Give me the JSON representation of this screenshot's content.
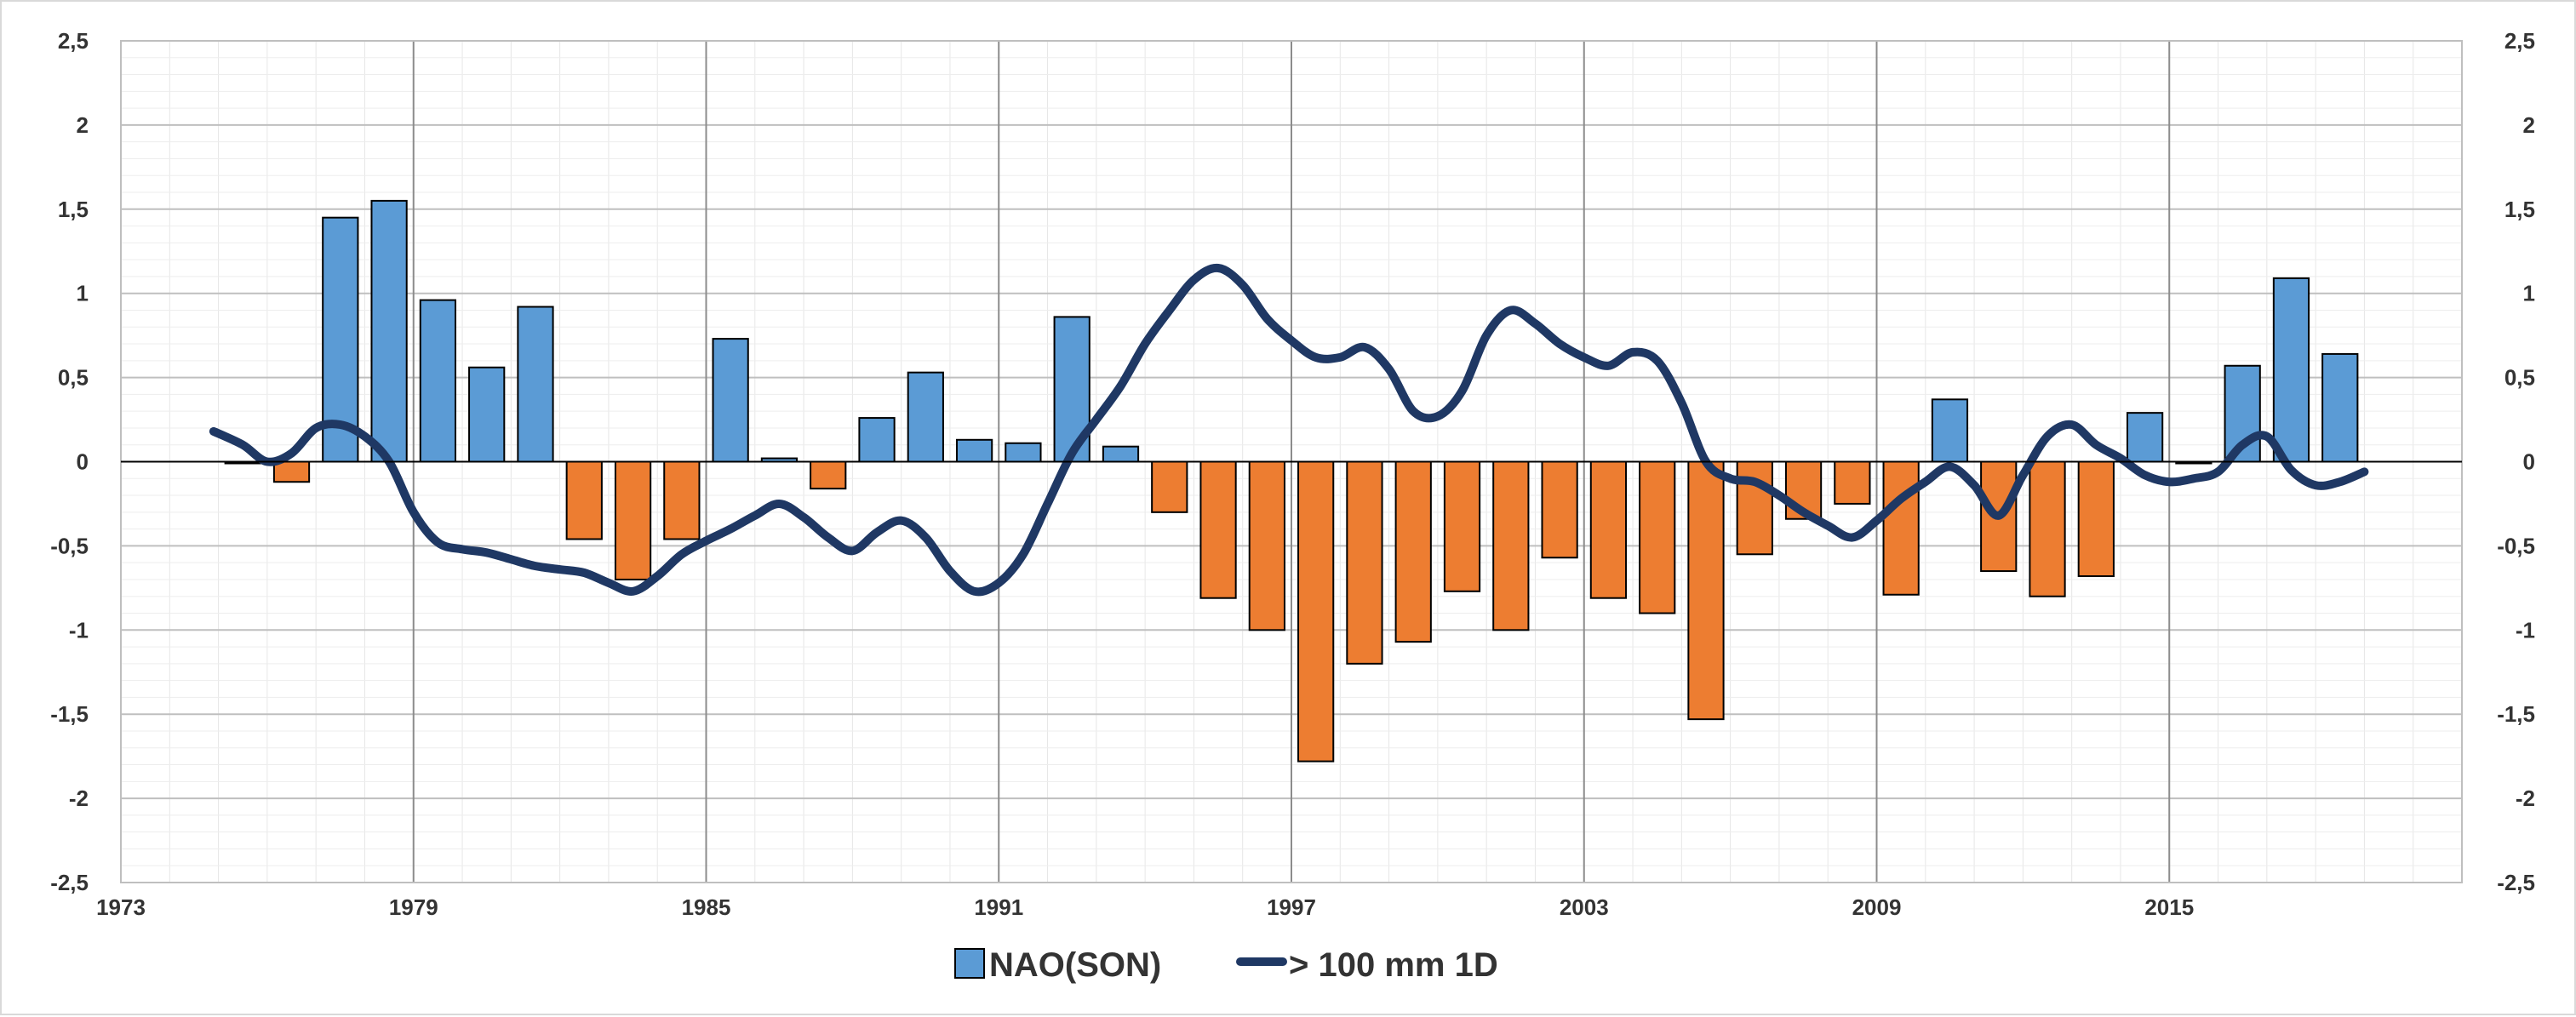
{
  "chart_data": {
    "type": "bar",
    "title": "",
    "xlabel": "",
    "ylabel": "",
    "xlim": [
      1973,
      2021
    ],
    "ylim": [
      -2.5,
      2.5
    ],
    "grid": true,
    "legend_position": "bottom-center",
    "x_ticks": [
      "1973",
      "1979",
      "1985",
      "1991",
      "1997",
      "2003",
      "2009",
      "2015"
    ],
    "y_ticks_left": [
      "2,5",
      "2",
      "1,5",
      "1",
      "0,5",
      "0",
      "-0,5",
      "-1",
      "-1,5",
      "-2",
      "-2,5"
    ],
    "y_ticks_right": [
      "2,5",
      "2",
      "1,5",
      "1",
      "0,5",
      "0",
      "-0,5",
      "-1",
      "-1,5",
      "-2",
      "-2,5"
    ],
    "colors": {
      "positive": "#5b9bd5",
      "negative": "#ed7d31",
      "line": "#1f3864",
      "bar_edge": "#000000"
    },
    "series": [
      {
        "name": "NAO(SON)",
        "kind": "bar",
        "years": [
          1975,
          1976,
          1977,
          1978,
          1979,
          1980,
          1981,
          1982,
          1983,
          1984,
          1985,
          1986,
          1987,
          1988,
          1989,
          1990,
          1991,
          1992,
          1993,
          1994,
          1995,
          1996,
          1997,
          1998,
          1999,
          2000,
          2001,
          2002,
          2003,
          2004,
          2005,
          2006,
          2007,
          2008,
          2009,
          2010,
          2011,
          2012,
          2013,
          2014,
          2015,
          2016,
          2017,
          2018
        ],
        "values": [
          0.0,
          -0.12,
          1.45,
          1.55,
          0.96,
          0.56,
          0.92,
          -0.46,
          -0.7,
          -0.46,
          0.73,
          0.02,
          -0.16,
          0.26,
          0.53,
          0.13,
          0.11,
          0.86,
          0.09,
          -0.3,
          -0.81,
          -1.0,
          -1.78,
          -1.2,
          -1.07,
          -0.77,
          -1.0,
          -0.57,
          -0.81,
          -0.9,
          -1.53,
          -0.55,
          -0.34,
          -0.25,
          -0.79,
          0.37,
          -0.65,
          -0.8,
          -0.68,
          0.29,
          0.0,
          0.57,
          1.09,
          0.64
        ]
      },
      {
        "name": "> 100 mm 1D",
        "kind": "line",
        "x": [
          1974.9,
          1975.5,
          1976.0,
          1976.5,
          1977.0,
          1977.5,
          1978.0,
          1978.5,
          1979.0,
          1979.5,
          1980.0,
          1980.5,
          1981.0,
          1981.5,
          1982.0,
          1982.5,
          1983.0,
          1983.5,
          1984.0,
          1984.5,
          1985.0,
          1985.5,
          1986.0,
          1986.5,
          1987.0,
          1987.5,
          1988.0,
          1988.5,
          1989.0,
          1989.5,
          1990.0,
          1990.5,
          1991.0,
          1991.5,
          1992.0,
          1992.5,
          1993.0,
          1993.5,
          1994.0,
          1994.5,
          1995.0,
          1995.5,
          1996.0,
          1996.5,
          1997.0,
          1997.5,
          1998.0,
          1998.5,
          1999.0,
          1999.5,
          2000.0,
          2000.5,
          2001.0,
          2001.5,
          2002.0,
          2002.5,
          2003.0,
          2003.5,
          2004.0,
          2004.5,
          2005.0,
          2005.5,
          2006.0,
          2006.5,
          2007.0,
          2007.5,
          2008.0,
          2008.5,
          2009.0,
          2009.5,
          2010.0,
          2010.5,
          2011.0,
          2011.5,
          2012.0,
          2012.5,
          2013.0,
          2013.5,
          2014.0,
          2014.5,
          2015.0,
          2015.5,
          2016.0,
          2016.5,
          2017.0,
          2017.5,
          2018.0,
          2018.5,
          2019.0
        ],
        "values": [
          0.18,
          0.1,
          0.0,
          0.05,
          0.2,
          0.22,
          0.15,
          0.0,
          -0.3,
          -0.48,
          -0.52,
          -0.54,
          -0.58,
          -0.62,
          -0.64,
          -0.66,
          -0.72,
          -0.77,
          -0.68,
          -0.55,
          -0.47,
          -0.4,
          -0.32,
          -0.25,
          -0.33,
          -0.45,
          -0.53,
          -0.42,
          -0.35,
          -0.45,
          -0.65,
          -0.77,
          -0.72,
          -0.55,
          -0.25,
          0.05,
          0.25,
          0.45,
          0.7,
          0.9,
          1.08,
          1.15,
          1.05,
          0.85,
          0.72,
          0.62,
          0.62,
          0.68,
          0.55,
          0.3,
          0.27,
          0.42,
          0.75,
          0.9,
          0.82,
          0.7,
          0.62,
          0.57,
          0.65,
          0.6,
          0.35,
          0.0,
          -0.1,
          -0.12,
          -0.2,
          -0.3,
          -0.38,
          -0.45,
          -0.35,
          -0.22,
          -0.12,
          -0.03,
          -0.14,
          -0.32,
          -0.08,
          0.15,
          0.22,
          0.1,
          0.02,
          -0.08,
          -0.12,
          -0.1,
          -0.06,
          0.1,
          0.15,
          -0.05,
          -0.14,
          -0.12,
          -0.06
        ]
      }
    ]
  }
}
